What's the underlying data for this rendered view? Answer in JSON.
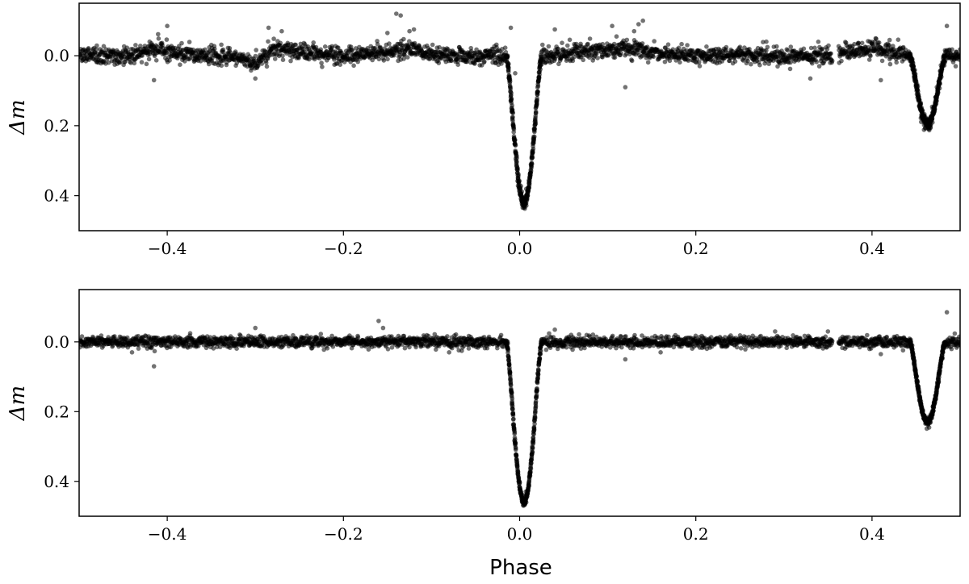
{
  "figure": {
    "xlabel": "Phase"
  },
  "chart_data": [
    {
      "type": "scatter",
      "ylabel": "Δm",
      "ylabel_style": "italic-math",
      "xlim": [
        -0.5,
        0.5
      ],
      "ylim": [
        0.5,
        -0.15
      ],
      "y_inverted": true,
      "xticks": [
        -0.4,
        -0.2,
        0.0,
        0.2,
        0.4
      ],
      "xtick_labels": [
        "−0.4",
        "−0.2",
        "0.0",
        "0.2",
        "0.4"
      ],
      "yticks": [
        0.0,
        0.2,
        0.4
      ],
      "ytick_labels": [
        "0.0",
        "0.2",
        "0.4"
      ],
      "grid": false,
      "marker_color": "#000000",
      "marker_alpha": 0.55,
      "noise": 0.012,
      "baseline_shape": [
        [
          -0.5,
          0.0
        ],
        [
          -0.44,
          0.0
        ],
        [
          -0.41,
          -0.02
        ],
        [
          -0.38,
          -0.005
        ],
        [
          -0.33,
          0.0
        ],
        [
          -0.3,
          0.02
        ],
        [
          -0.28,
          -0.02
        ],
        [
          -0.24,
          -0.01
        ],
        [
          -0.2,
          0.0
        ],
        [
          -0.15,
          -0.01
        ],
        [
          -0.12,
          -0.02
        ],
        [
          -0.08,
          0.0
        ],
        [
          -0.02,
          0.0
        ],
        [
          0.04,
          0.0
        ],
        [
          0.1,
          -0.02
        ],
        [
          0.14,
          -0.015
        ],
        [
          0.2,
          0.0
        ],
        [
          0.26,
          -0.005
        ],
        [
          0.3,
          0.0
        ],
        [
          0.35,
          0.0
        ],
        [
          0.4,
          -0.02
        ],
        [
          0.44,
          0.0
        ],
        [
          0.5,
          0.0
        ]
      ],
      "eclipses": [
        {
          "phase_center": 0.005,
          "depth": 0.42,
          "half_width": 0.02
        },
        {
          "phase_center": 0.463,
          "depth": 0.195,
          "half_width": 0.02
        }
      ],
      "gaps": [
        [
          0.355,
          0.362
        ]
      ],
      "outliers": [
        {
          "x": -0.415,
          "y": 0.07
        },
        {
          "x": -0.42,
          "y": -0.04
        },
        {
          "x": -0.4,
          "y": -0.085
        },
        {
          "x": -0.3,
          "y": 0.065
        },
        {
          "x": -0.285,
          "y": -0.08
        },
        {
          "x": -0.27,
          "y": -0.07
        },
        {
          "x": -0.14,
          "y": -0.12
        },
        {
          "x": -0.135,
          "y": -0.115
        },
        {
          "x": -0.15,
          "y": -0.065
        },
        {
          "x": -0.125,
          "y": -0.07
        },
        {
          "x": -0.12,
          "y": -0.075
        },
        {
          "x": -0.01,
          "y": -0.08
        },
        {
          "x": -0.005,
          "y": 0.05
        },
        {
          "x": 0.04,
          "y": -0.075
        },
        {
          "x": 0.105,
          "y": -0.085
        },
        {
          "x": 0.11,
          "y": -0.055
        },
        {
          "x": 0.12,
          "y": 0.09
        },
        {
          "x": 0.13,
          "y": -0.07
        },
        {
          "x": 0.135,
          "y": -0.09
        },
        {
          "x": 0.14,
          "y": -0.1
        },
        {
          "x": 0.33,
          "y": 0.065
        },
        {
          "x": 0.28,
          "y": -0.04
        },
        {
          "x": 0.41,
          "y": 0.07
        },
        {
          "x": 0.42,
          "y": -0.045
        },
        {
          "x": 0.485,
          "y": -0.085
        },
        {
          "x": 0.495,
          "y": 0.03
        }
      ]
    },
    {
      "type": "scatter",
      "ylabel": "Δm",
      "ylabel_style": "italic-math",
      "xlim": [
        -0.5,
        0.5
      ],
      "ylim": [
        0.5,
        -0.15
      ],
      "y_inverted": true,
      "xticks": [
        -0.4,
        -0.2,
        0.0,
        0.2,
        0.4
      ],
      "xtick_labels": [
        "−0.4",
        "−0.2",
        "0.0",
        "0.2",
        "0.4"
      ],
      "yticks": [
        0.0,
        0.2,
        0.4
      ],
      "ytick_labels": [
        "0.0",
        "0.2",
        "0.4"
      ],
      "grid": false,
      "marker_color": "#000000",
      "marker_alpha": 0.55,
      "noise": 0.008,
      "baseline_shape": [
        [
          -0.5,
          0.0
        ],
        [
          0.5,
          0.0
        ]
      ],
      "eclipses": [
        {
          "phase_center": 0.005,
          "depth": 0.46,
          "half_width": 0.02
        },
        {
          "phase_center": 0.463,
          "depth": 0.23,
          "half_width": 0.02
        }
      ],
      "gaps": [
        [
          0.355,
          0.362
        ]
      ],
      "outliers": [
        {
          "x": -0.415,
          "y": 0.07
        },
        {
          "x": -0.44,
          "y": 0.03
        },
        {
          "x": -0.3,
          "y": -0.04
        },
        {
          "x": -0.16,
          "y": -0.06
        },
        {
          "x": -0.155,
          "y": -0.04
        },
        {
          "x": -0.08,
          "y": 0.03
        },
        {
          "x": 0.04,
          "y": -0.035
        },
        {
          "x": 0.12,
          "y": 0.05
        },
        {
          "x": 0.16,
          "y": 0.03
        },
        {
          "x": 0.29,
          "y": -0.03
        },
        {
          "x": 0.35,
          "y": -0.03
        },
        {
          "x": 0.41,
          "y": 0.035
        },
        {
          "x": 0.485,
          "y": -0.085
        }
      ]
    }
  ]
}
